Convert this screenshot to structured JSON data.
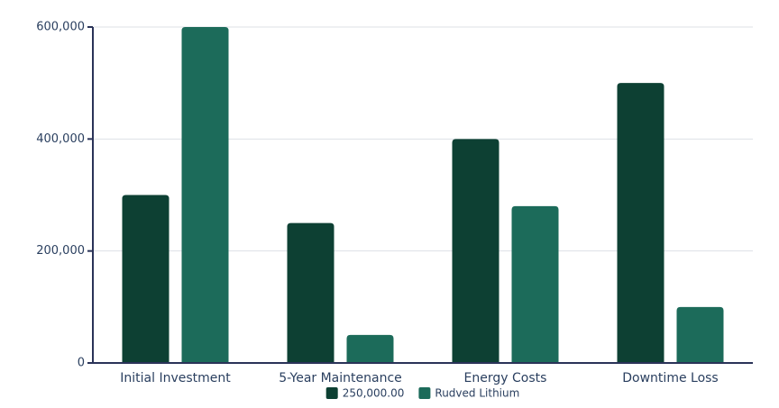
{
  "chart_data": {
    "type": "bar",
    "categories": [
      "Initial Investment",
      "5-Year Maintenance",
      "Energy Costs",
      "Downtime Loss"
    ],
    "series": [
      {
        "name": "250,000.00",
        "color": "#0d4033",
        "values": [
          300000,
          250000,
          400000,
          500000
        ]
      },
      {
        "name": "Rudved Lithium",
        "color": "#1c6b5a",
        "values": [
          600000,
          50000,
          280000,
          100000
        ]
      }
    ],
    "ylim": [
      0,
      600000
    ],
    "yticks": [
      0,
      {
        "value": 200000,
        "label": "200,000"
      },
      {
        "value": 400000,
        "label": "400,000"
      },
      {
        "value": 600000,
        "label": "600,000"
      }
    ],
    "grid": true,
    "legend": "bottom"
  }
}
